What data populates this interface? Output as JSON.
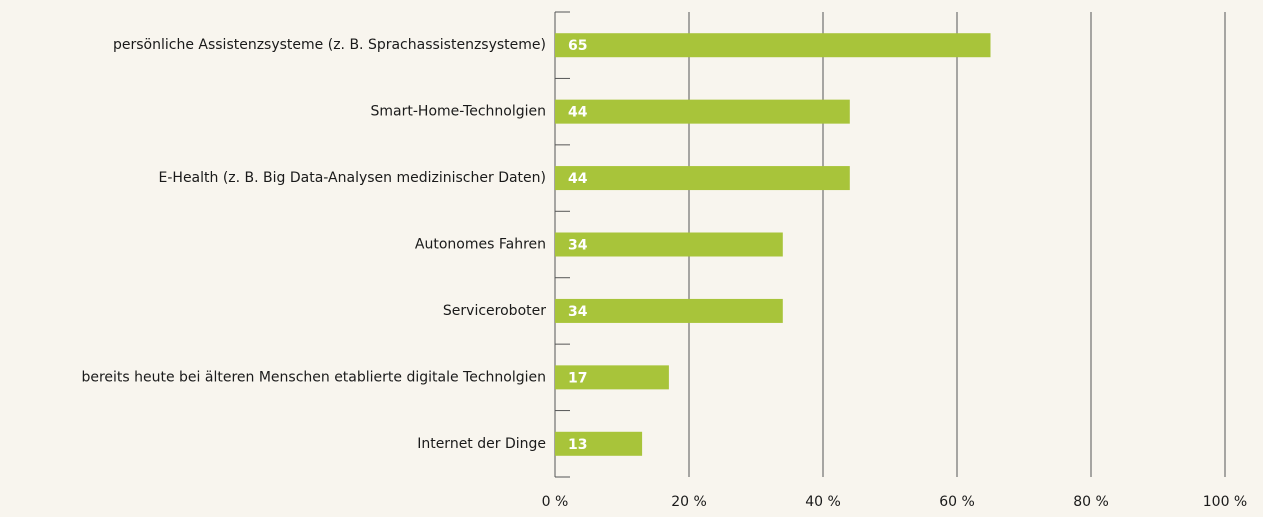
{
  "chart_data": {
    "type": "bar",
    "orientation": "horizontal",
    "categories": [
      "persönliche Assistenzsysteme (z. B. Sprachassistenzsysteme)",
      "Smart-Home-Technolgien",
      "E-Health (z. B. Big Data-Analysen medizinischer Daten)",
      "Autonomes Fahren",
      "Serviceroboter",
      "bereits heute bei älteren Menschen etablierte digitale Technolgien",
      "Internet der Dinge"
    ],
    "values": [
      65,
      44,
      44,
      34,
      34,
      17,
      13
    ],
    "color": "#a8c43a",
    "xlim": [
      0,
      100
    ],
    "xticks": [
      {
        "value": 0,
        "label": "0 %"
      },
      {
        "value": 20,
        "label": "20 %"
      },
      {
        "value": 40,
        "label": "40 %"
      },
      {
        "value": 60,
        "label": "60 %"
      },
      {
        "value": 80,
        "label": "80 %"
      },
      {
        "value": 100,
        "label": "100 %"
      }
    ],
    "grid": true
  }
}
